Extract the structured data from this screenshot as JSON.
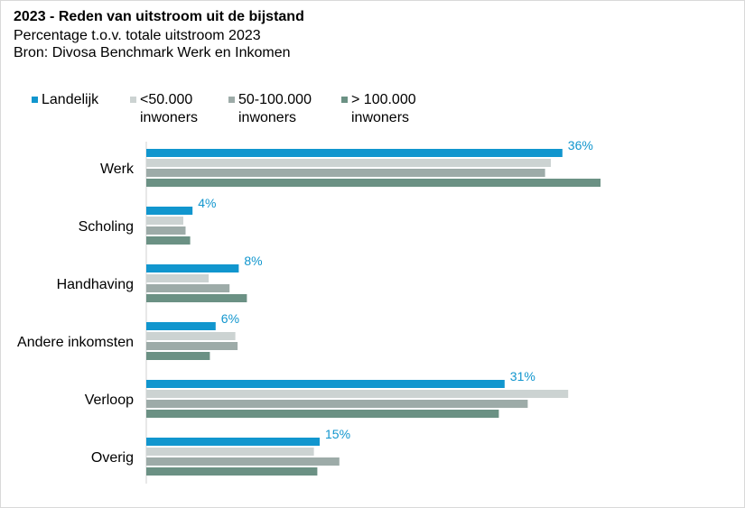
{
  "chart_data": {
    "type": "bar",
    "orientation": "horizontal",
    "title": "2023 - Reden van uitstroom uit de bijstand",
    "subtitle": "Percentage t.o.v. totale uitstroom 2023",
    "source": "Bron: Divosa Benchmark Werk en Inkomen",
    "categories": [
      "Werk",
      "Scholing",
      "Handhaving",
      "Andere inkomsten",
      "Verloop",
      "Overig"
    ],
    "series": [
      {
        "name": "Landelijk",
        "color": "#1196ce",
        "values": [
          36,
          4,
          8,
          6,
          31,
          15
        ]
      },
      {
        "name": "<50.000 inwoners",
        "color": "#ccd3d2",
        "values": [
          35,
          3.2,
          5.4,
          7.7,
          36.5,
          14.5
        ]
      },
      {
        "name": "50-100.000 inwoners",
        "color": "#9daba8",
        "values": [
          34.5,
          3.4,
          7.2,
          7.9,
          33,
          16.7
        ]
      },
      {
        "name": "> 100.000 inwoners",
        "color": "#6b9184",
        "values": [
          39.3,
          3.8,
          8.7,
          5.5,
          30.5,
          14.8
        ]
      }
    ],
    "data_labels": [
      "36%",
      "4%",
      "8%",
      "6%",
      "31%",
      "15%"
    ],
    "legend_position": "top",
    "grid": false,
    "xlim": [
      0,
      45
    ]
  }
}
